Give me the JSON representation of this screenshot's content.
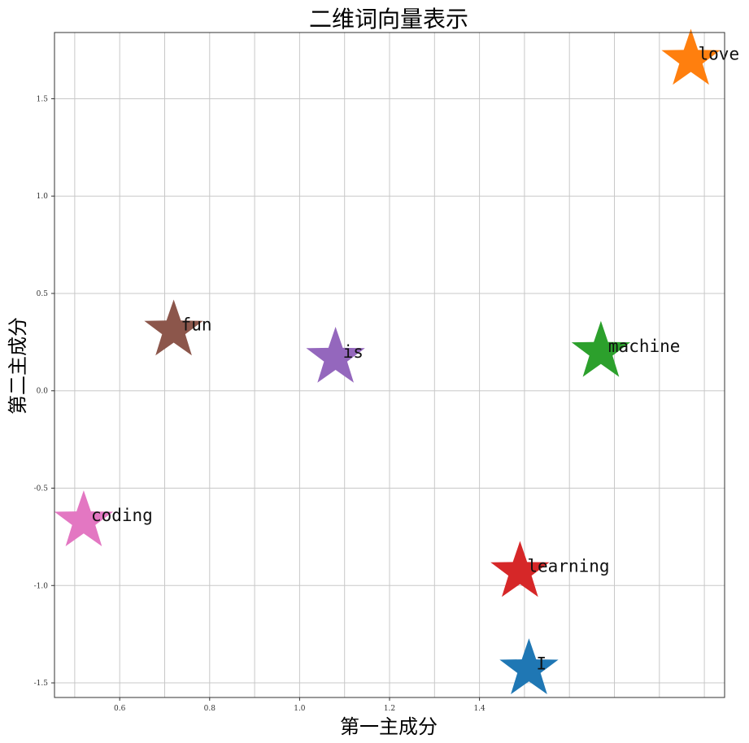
{
  "chart_data": {
    "type": "scatter",
    "title": "二维词向量表示",
    "xlabel": "第一主成分",
    "ylabel": "第二主成分",
    "xlim": [
      0.455,
      1.945
    ],
    "ylim": [
      -1.575,
      1.84
    ],
    "xticks": [
      0.6,
      0.8,
      1.0,
      1.2,
      1.4
    ],
    "xtick_labels": [
      "0.6",
      "0.8",
      "1.0",
      "1.2",
      "1.4"
    ],
    "yticks": [
      -1.5,
      -1.0,
      -0.5,
      0.0,
      0.5,
      1.0,
      1.5
    ],
    "ytick_labels": [
      "-1.5",
      "-1.0",
      "-0.5",
      "0.0",
      "0.5",
      "1.0",
      "1.5"
    ],
    "grid": true,
    "marker": "star",
    "points": [
      {
        "label": "I",
        "x": 1.51,
        "y": -1.43,
        "color": "#1f77b4"
      },
      {
        "label": "love",
        "x": 1.87,
        "y": 1.7,
        "color": "#ff7f0e"
      },
      {
        "label": "machine",
        "x": 1.67,
        "y": 0.2,
        "color": "#2ca02c"
      },
      {
        "label": "learning",
        "x": 1.49,
        "y": -0.93,
        "color": "#d62728"
      },
      {
        "label": "is",
        "x": 1.08,
        "y": 0.17,
        "color": "#9467bd"
      },
      {
        "label": "fun",
        "x": 0.72,
        "y": 0.31,
        "color": "#8c564b"
      },
      {
        "label": "coding",
        "x": 0.52,
        "y": -0.67,
        "color": "#e377c2"
      }
    ]
  }
}
